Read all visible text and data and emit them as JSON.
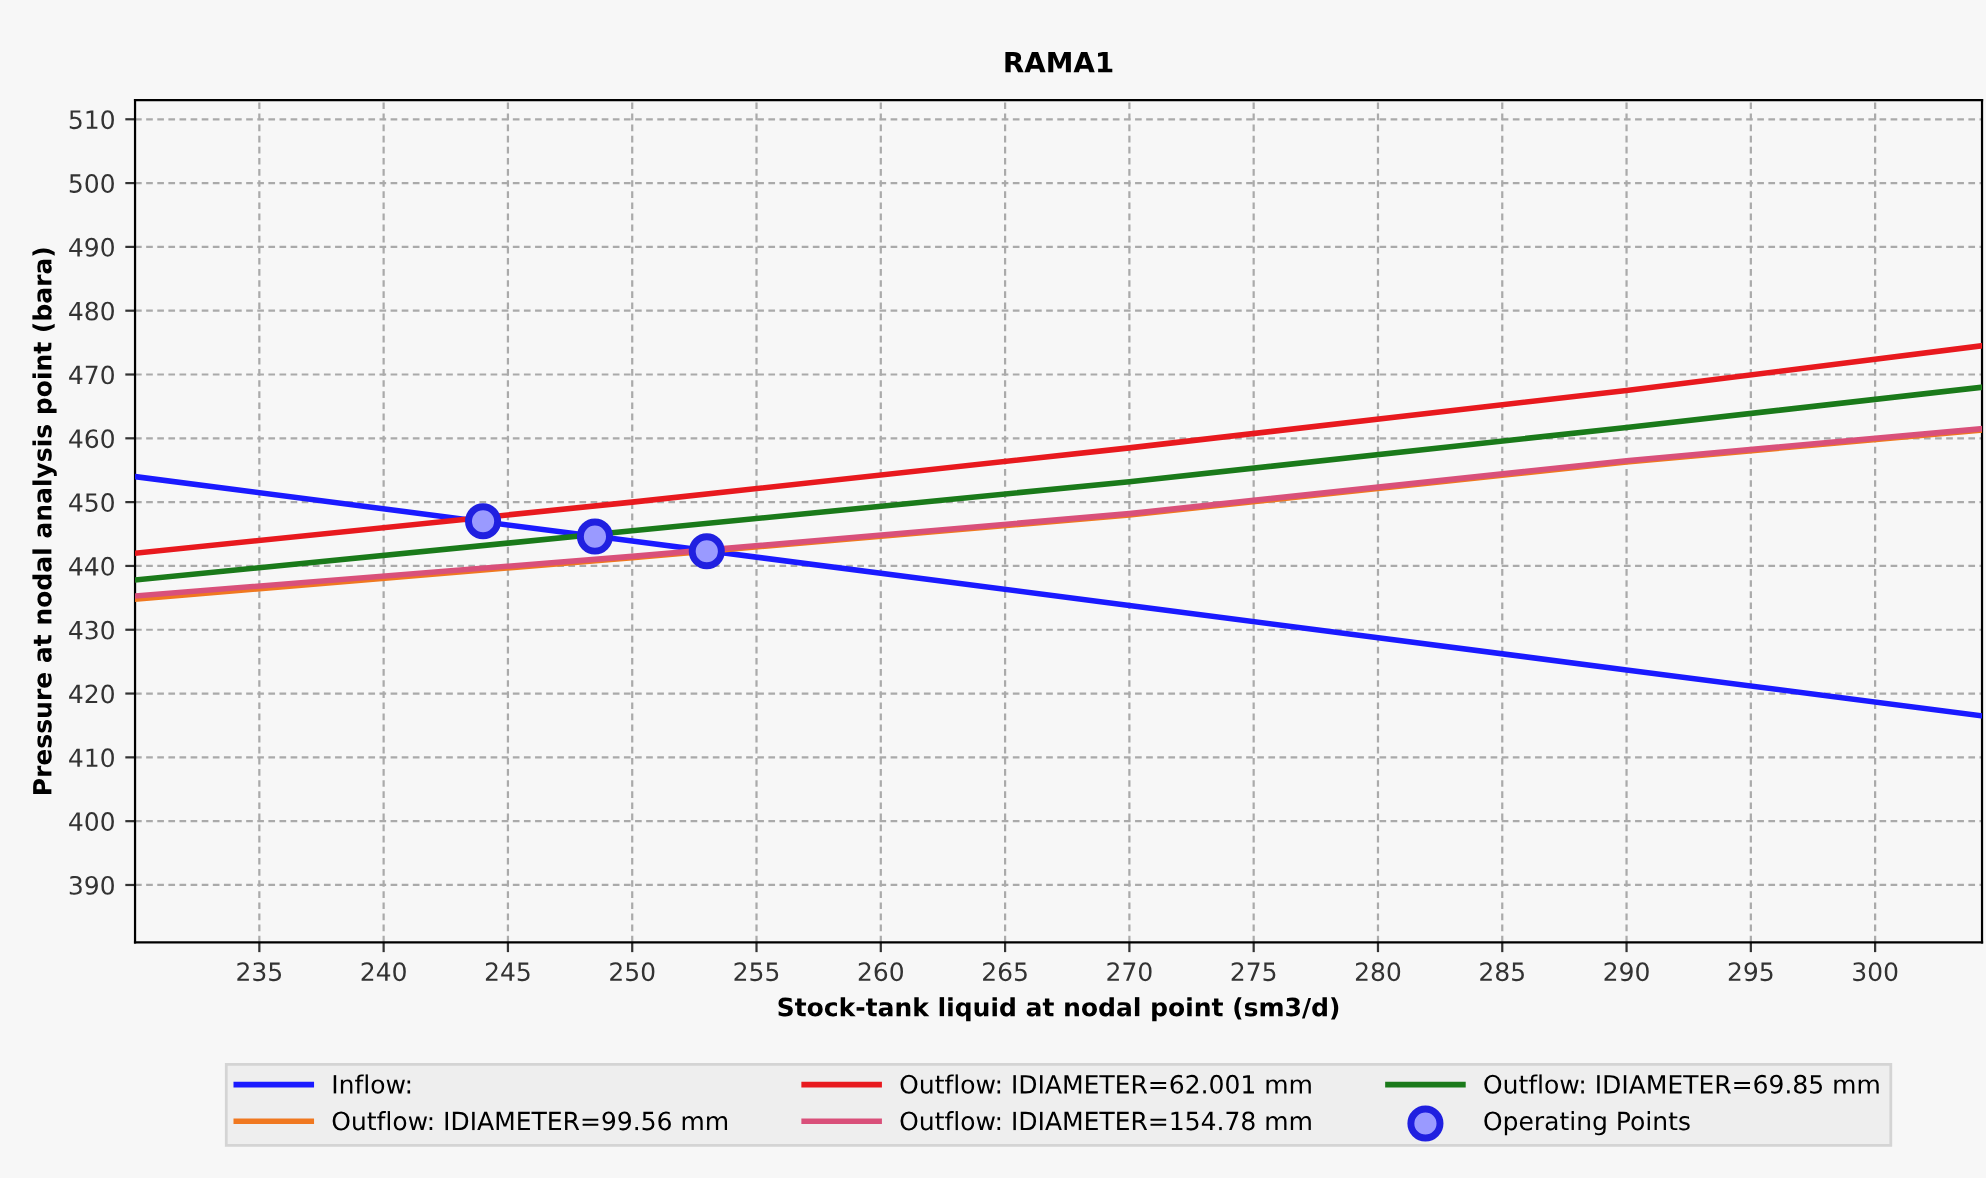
{
  "chart_data": {
    "type": "line",
    "title": "RAMA1",
    "xlabel": "Stock-tank liquid at nodal point (sm3/d)",
    "ylabel": "Pressure at nodal analysis point (bara)",
    "xlim": [
      230,
      304.3
    ],
    "ylim": [
      381,
      513
    ],
    "xticks": [
      235,
      240,
      245,
      250,
      255,
      260,
      265,
      270,
      275,
      280,
      285,
      290,
      295,
      300
    ],
    "yticks": [
      390,
      400,
      410,
      420,
      430,
      440,
      450,
      460,
      470,
      480,
      490,
      500,
      510
    ],
    "grid": true,
    "legend": "bottom",
    "marker": "none",
    "line_style": "solid",
    "series": [
      {
        "name": "Inflow:",
        "color": "#1a1aff",
        "x": [
          230,
          250,
          270,
          290,
          304.3
        ],
        "values": [
          454,
          443.9,
          433.8,
          423.7,
          416.5
        ]
      },
      {
        "name": "Outflow: IDIAMETER=62.001 mm",
        "color": "#e8191e",
        "x": [
          230,
          250,
          270,
          290,
          304.3
        ],
        "values": [
          442,
          450,
          458.5,
          467.5,
          474.5
        ]
      },
      {
        "name": "Outflow: IDIAMETER=69.85 mm",
        "color": "#1a7a1a",
        "x": [
          230,
          250,
          270,
          290,
          304.3
        ],
        "values": [
          437.8,
          445.5,
          453.2,
          461.7,
          468
        ]
      },
      {
        "name": "Outflow: IDIAMETER=99.56 mm",
        "color": "#f07820",
        "x": [
          230,
          250,
          270,
          290,
          304.3
        ],
        "values": [
          434.8,
          441.3,
          448,
          456.3,
          461.3
        ]
      },
      {
        "name": "Outflow: IDIAMETER=154.78 mm",
        "color": "#d9507a",
        "x": [
          230,
          250,
          270,
          290,
          304.3
        ],
        "values": [
          435.3,
          441.5,
          448.2,
          456.5,
          461.5
        ]
      },
      {
        "name": "Operating Points",
        "type": "scatter",
        "marker": "circle",
        "color": "#2020e0",
        "x": [
          244,
          248.5,
          253
        ],
        "values": [
          447,
          444.6,
          442.3
        ]
      }
    ]
  }
}
